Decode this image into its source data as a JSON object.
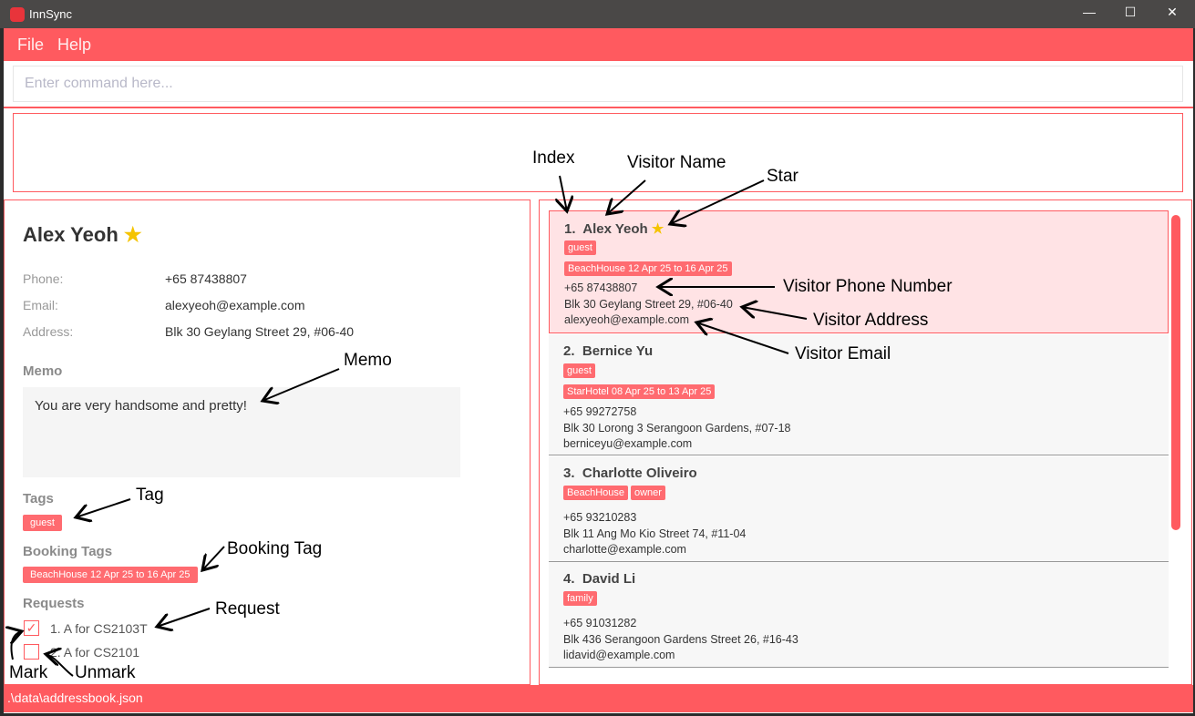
{
  "window": {
    "title": "InnSync",
    "minimize": "—",
    "maximize": "☐",
    "close": "✕"
  },
  "menu": [
    "File",
    "Help"
  ],
  "command": {
    "placeholder": "Enter command here...",
    "value": ""
  },
  "result": "",
  "detail": {
    "name": "Alex Yeoh",
    "starred": true,
    "star": "★",
    "phone_label": "Phone:",
    "phone": "+65 87438807",
    "email_label": "Email:",
    "email": "alexyeoh@example.com",
    "address_label": "Address:",
    "address": "Blk 30 Geylang Street 29, #06-40",
    "memo_label": "Memo",
    "memo": "You are very handsome and pretty!",
    "tags_label": "Tags",
    "tags": [
      "guest"
    ],
    "booking_label": "Booking Tags",
    "bookings": [
      "BeachHouse 12 Apr 25 to 16 Apr 25"
    ],
    "requests_label": "Requests",
    "requests": [
      {
        "text": "1. A for CS2103T",
        "done": true,
        "mark": "✓"
      },
      {
        "text": "2. A for CS2101",
        "done": false,
        "mark": ""
      }
    ]
  },
  "list": [
    {
      "index": "1.",
      "name": "Alex Yeoh",
      "starred": true,
      "tags": [
        "guest"
      ],
      "bookings": [
        "BeachHouse 12 Apr 25 to 16 Apr 25"
      ],
      "phone": "+65 87438807",
      "address": "Blk 30 Geylang Street 29, #06-40",
      "email": "alexyeoh@example.com"
    },
    {
      "index": "2.",
      "name": "Bernice Yu",
      "starred": false,
      "tags": [
        "guest"
      ],
      "bookings": [
        "StarHotel 08 Apr 25 to 13 Apr 25"
      ],
      "phone": "+65 99272758",
      "address": "Blk 30 Lorong 3 Serangoon Gardens, #07-18",
      "email": "berniceyu@example.com"
    },
    {
      "index": "3.",
      "name": "Charlotte Oliveiro",
      "starred": false,
      "tags": [
        "BeachHouse",
        "owner"
      ],
      "bookings": [],
      "phone": "+65 93210283",
      "address": "Blk 11 Ang Mo Kio Street 74, #11-04",
      "email": "charlotte@example.com"
    },
    {
      "index": "4.",
      "name": "David Li",
      "starred": false,
      "tags": [
        "family"
      ],
      "bookings": [],
      "phone": "+65 91031282",
      "address": "Blk 436 Serangoon Gardens Street 26, #16-43",
      "email": "lidavid@example.com"
    }
  ],
  "status": ".\\data\\addressbook.json",
  "annotations": {
    "index": "Index",
    "visitor_name": "Visitor Name",
    "star": "Star",
    "phone": "Visitor Phone Number",
    "address": "Visitor Address",
    "email": "Visitor Email",
    "memo": "Memo",
    "tag": "Tag",
    "booking_tag": "Booking Tag",
    "request": "Request",
    "mark": "Mark",
    "unmark": "Unmark"
  },
  "colors": {
    "accent": "#ff5a5f",
    "tag": "#ff6b70",
    "selected": "#ffe3e5",
    "star": "#f5c400"
  }
}
